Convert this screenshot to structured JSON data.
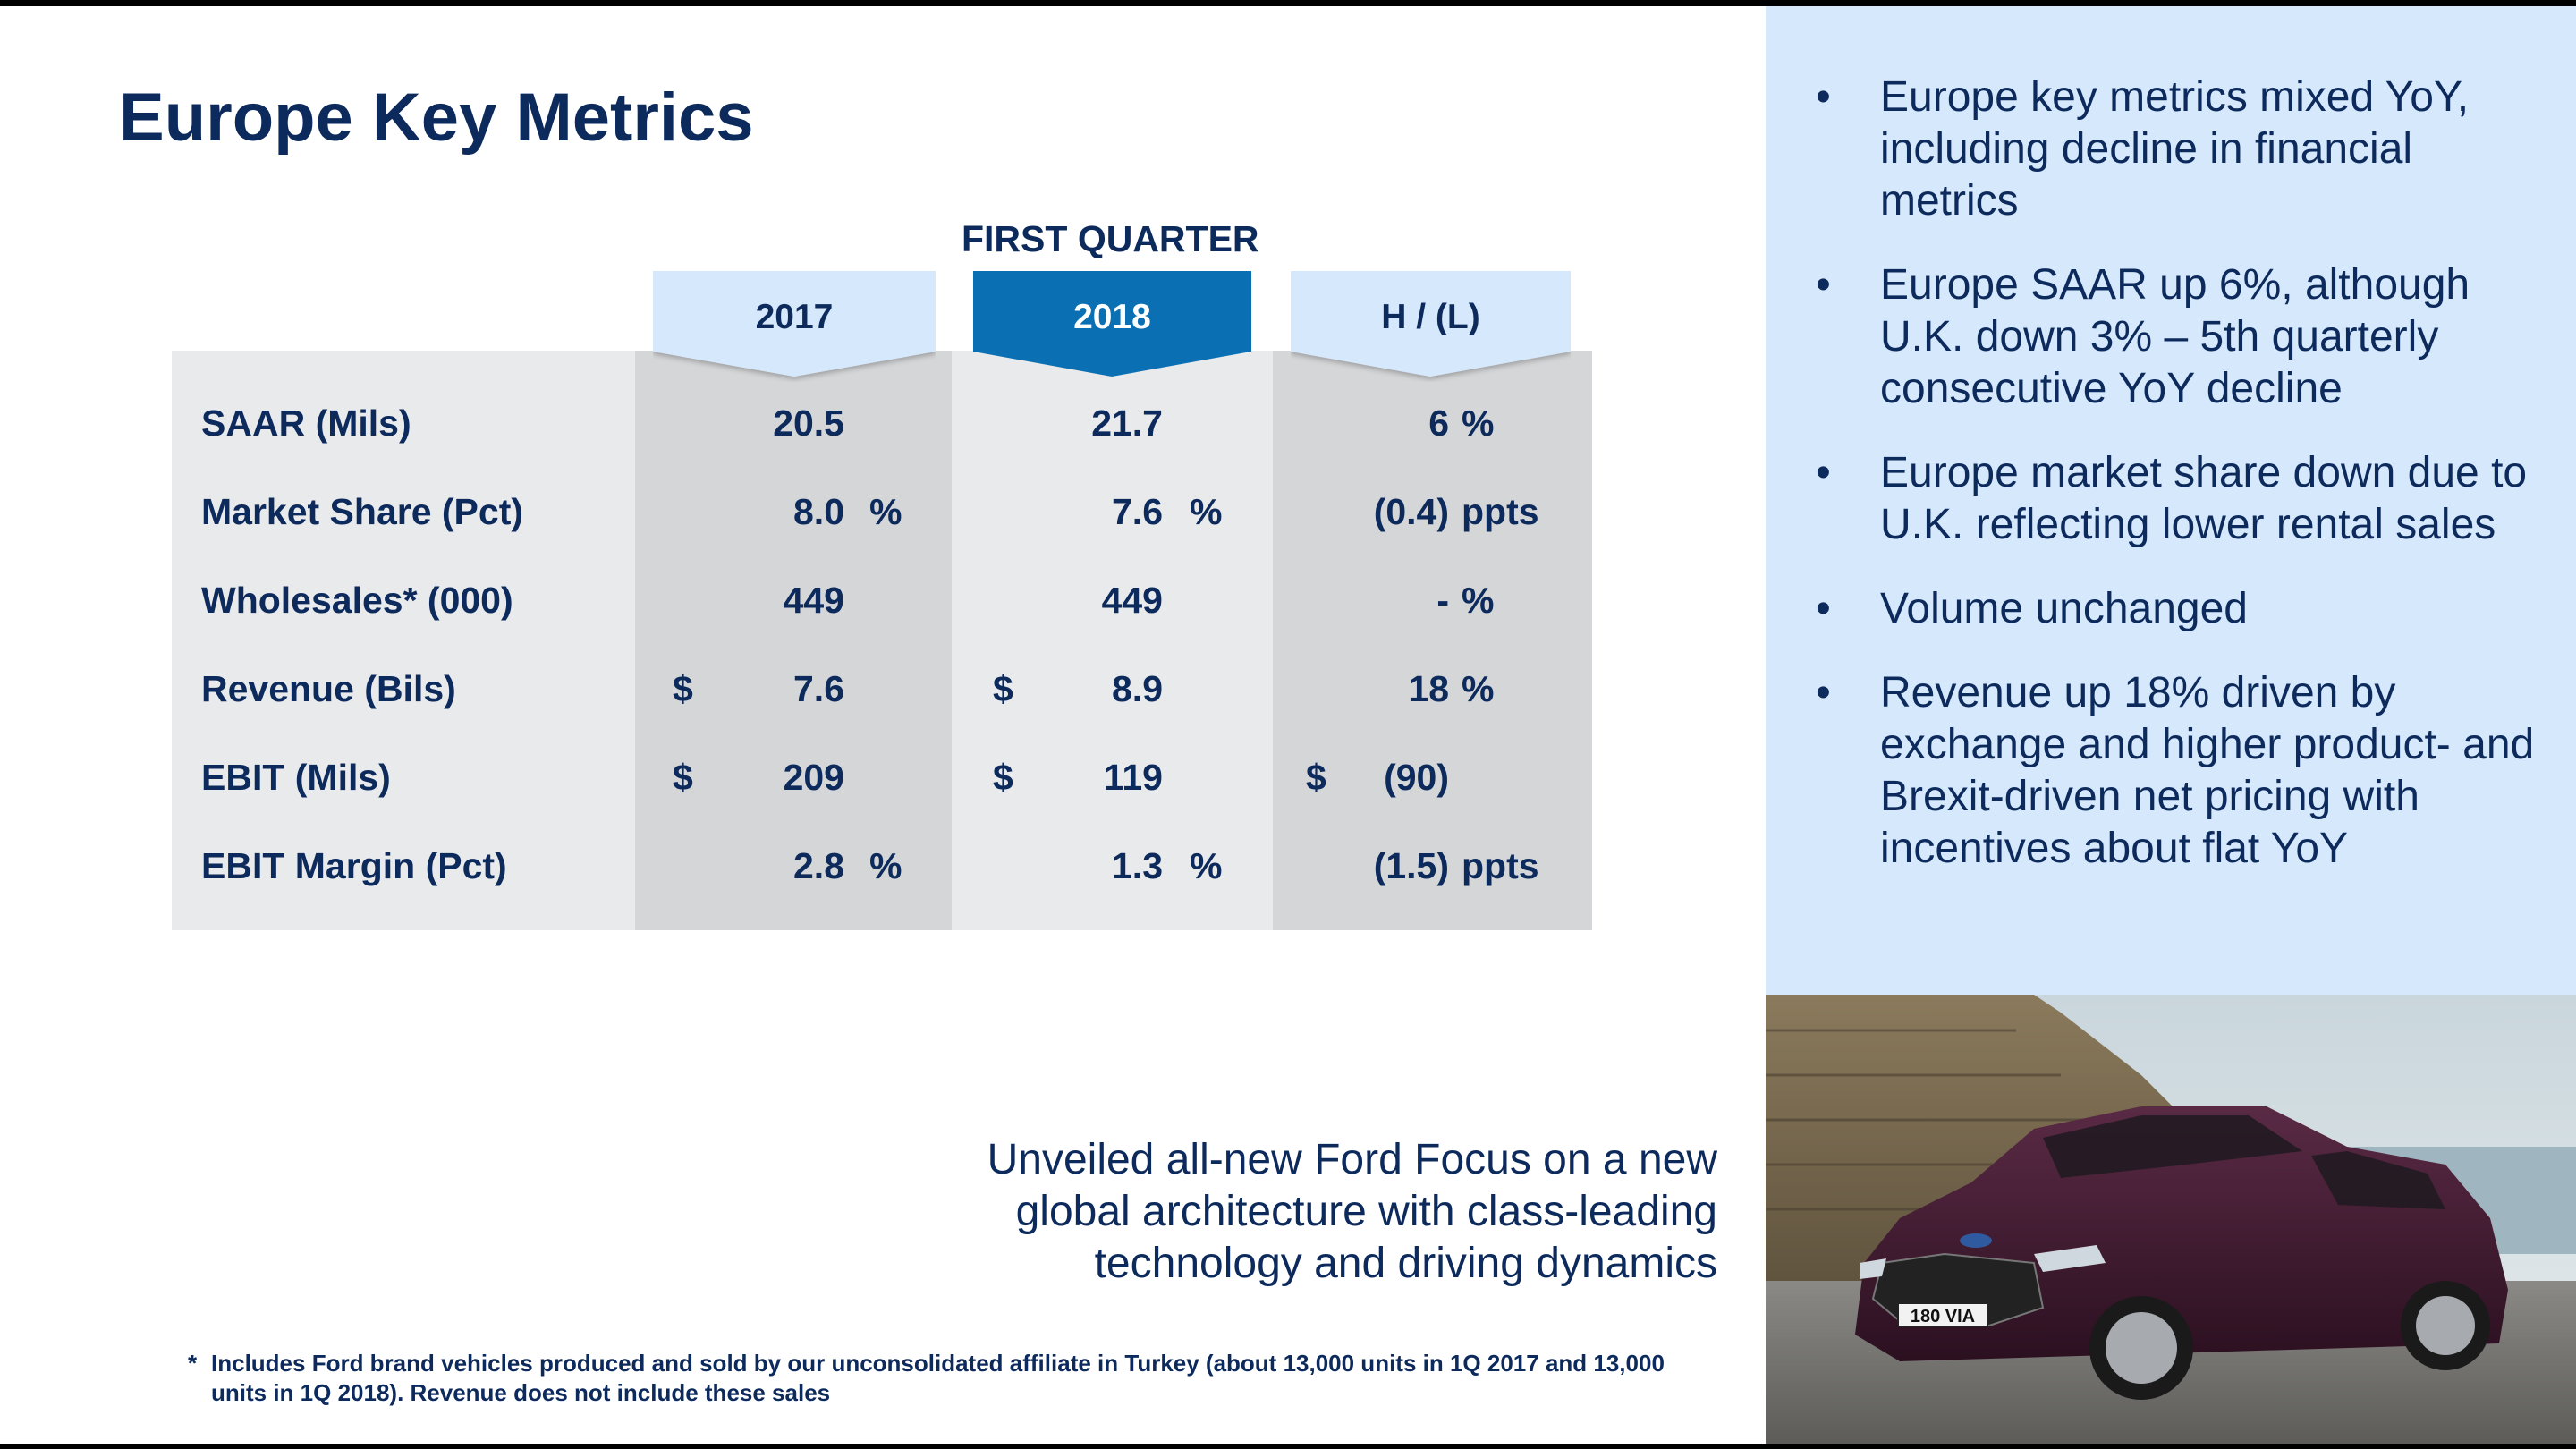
{
  "slide": {
    "title": "Europe Key Metrics",
    "period_label": "FIRST QUARTER"
  },
  "table": {
    "headers": [
      "2017",
      "2018",
      "H / (L)"
    ],
    "rows": [
      {
        "label": "SAAR (Mils)",
        "v2017": {
          "cur": "",
          "num": "20.5",
          "unit": ""
        },
        "v2018": {
          "cur": "",
          "num": "21.7",
          "unit": ""
        },
        "hl": {
          "cur": "",
          "num": "6",
          "unit": "%"
        }
      },
      {
        "label": "Market Share (Pct)",
        "v2017": {
          "cur": "",
          "num": "8.0",
          "unit": "%"
        },
        "v2018": {
          "cur": "",
          "num": "7.6",
          "unit": "%"
        },
        "hl": {
          "cur": "",
          "num": "(0.4)",
          "unit": "ppts"
        }
      },
      {
        "label": "Wholesales* (000)",
        "v2017": {
          "cur": "",
          "num": "449",
          "unit": ""
        },
        "v2018": {
          "cur": "",
          "num": "449",
          "unit": ""
        },
        "hl": {
          "cur": "",
          "num": "-",
          "unit": "%"
        }
      },
      {
        "label": "Revenue (Bils)",
        "v2017": {
          "cur": "$",
          "num": "7.6",
          "unit": ""
        },
        "v2018": {
          "cur": "$",
          "num": "8.9",
          "unit": ""
        },
        "hl": {
          "cur": "",
          "num": "18",
          "unit": "%"
        }
      },
      {
        "label": "EBIT (Mils)",
        "v2017": {
          "cur": "$",
          "num": "209",
          "unit": ""
        },
        "v2018": {
          "cur": "$",
          "num": "119",
          "unit": ""
        },
        "hl": {
          "cur": "$",
          "num": "(90)",
          "unit": ""
        }
      },
      {
        "label": "EBIT Margin (Pct)",
        "v2017": {
          "cur": "",
          "num": "2.8",
          "unit": "%"
        },
        "v2018": {
          "cur": "",
          "num": "1.3",
          "unit": "%"
        },
        "hl": {
          "cur": "",
          "num": "(1.5)",
          "unit": "ppts"
        }
      }
    ]
  },
  "bullets": [
    "Europe key metrics mixed YoY, including decline in financial metrics",
    "Europe SAAR up 6%, although U.K. down 3% – 5th quarterly consecutive YoY decline",
    "Europe market share down due to U.K. reflecting lower rental sales",
    "Volume unchanged",
    "Revenue up 18% driven by exchange and higher product- and Brexit-driven net pricing with incentives about flat YoY"
  ],
  "bullet_symbol": "•",
  "caption": "Unveiled all-new Ford Focus on a new global architecture with class-leading technology and driving dynamics",
  "license_plate": "180 VIA",
  "footnote": {
    "marker": "*",
    "text": "Includes Ford brand vehicles produced and sold by our unconsolidated affiliate in Turkey (about 13,000 units in 1Q 2017 and 13,000 units in 1Q 2018).  Revenue does not include these sales"
  },
  "colors": {
    "navy": "#0d2a5c",
    "highlight_blue": "#0a6fb3",
    "light_blue": "#d6e8fb",
    "table_light": "#e9eaeb",
    "table_dark": "#d5d6d8"
  }
}
